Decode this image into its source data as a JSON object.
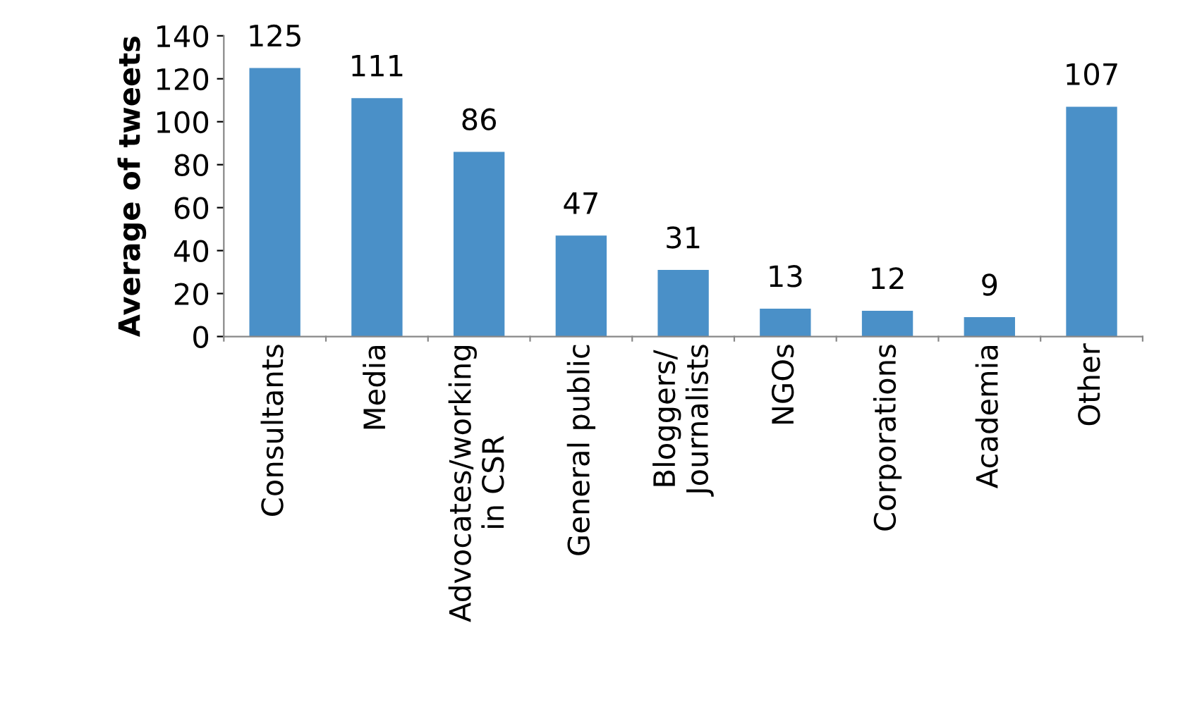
{
  "chart_data": {
    "type": "bar",
    "ylabel": "Average of tweets",
    "categories": [
      "Consultants",
      "Media",
      "Advocates/working\nin CSR",
      "General public",
      "Bloggers/\nJournalists",
      "NGOs",
      "Corporations",
      "Academia",
      "Other"
    ],
    "values": [
      125,
      111,
      86,
      47,
      31,
      13,
      12,
      9,
      107
    ],
    "color": "#4a90c8",
    "ylim": [
      0,
      140
    ],
    "yticks": [
      0,
      20,
      40,
      60,
      80,
      100,
      120,
      140
    ],
    "data_labels": true,
    "grid": false,
    "legend": false
  }
}
